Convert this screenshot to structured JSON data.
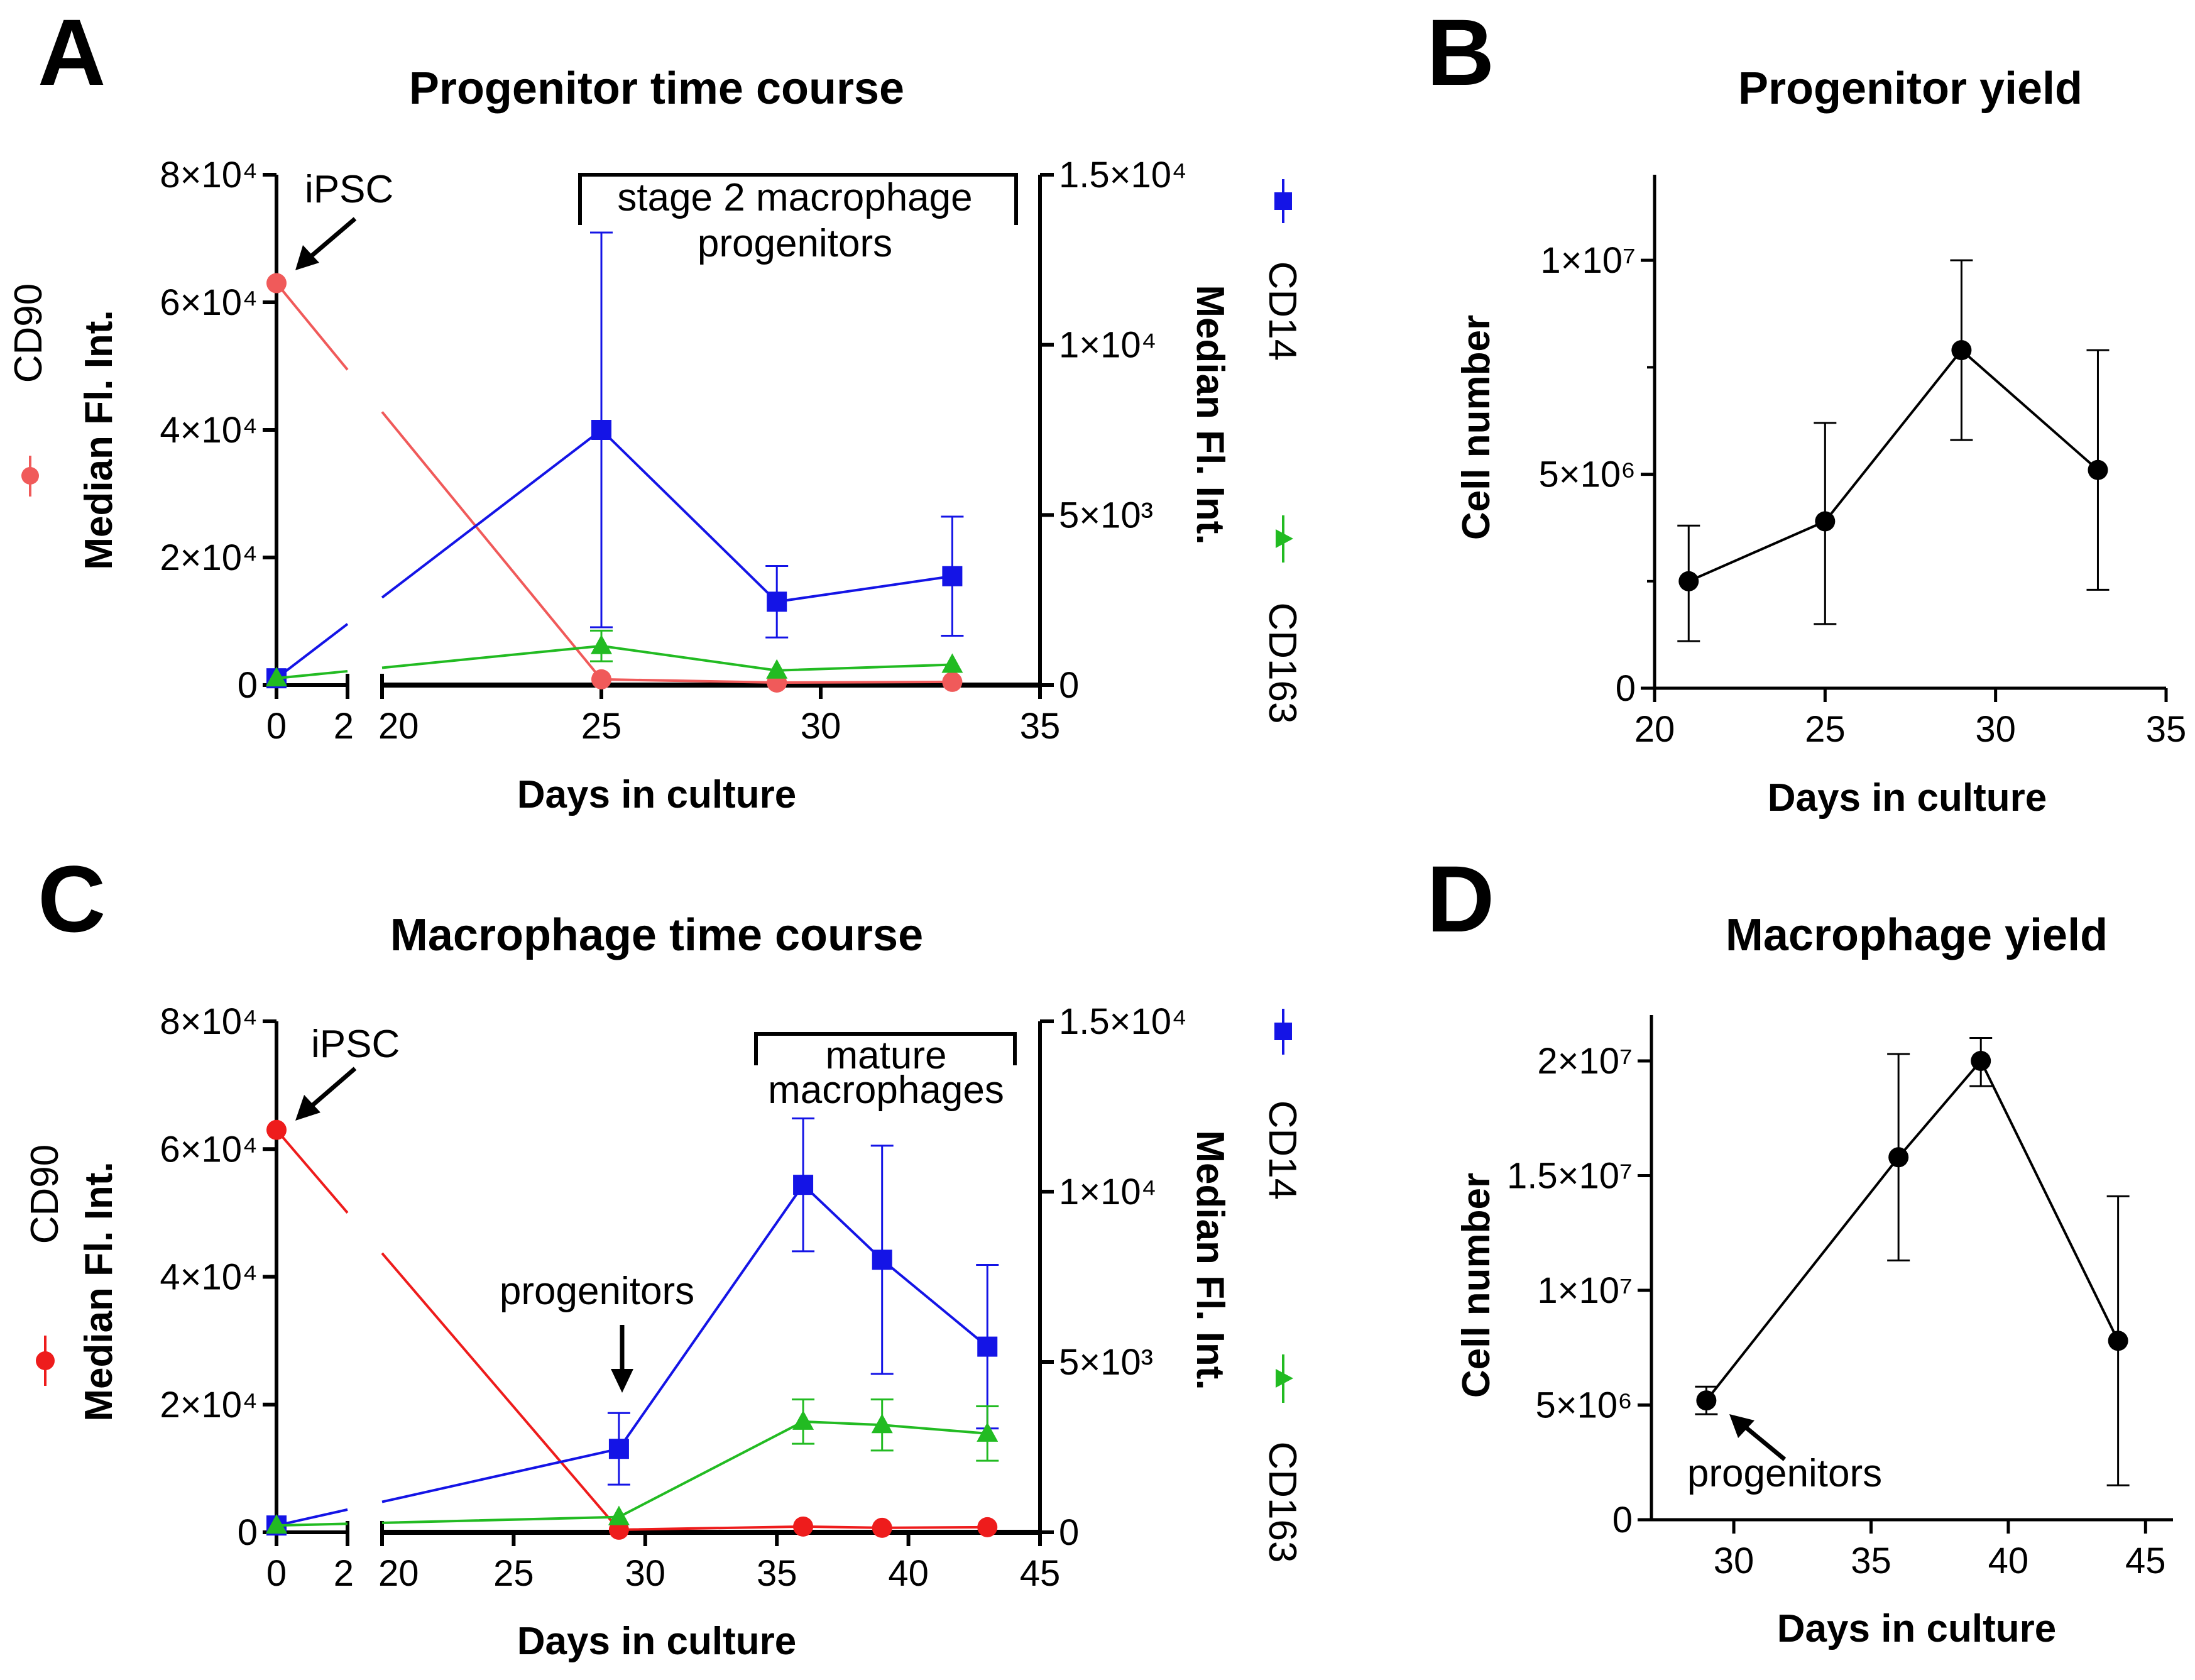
{
  "panels": [
    {
      "letter": "A",
      "title": "Progenitor time course",
      "xlabel": "Days in culture",
      "ylabel_left": "Median Fl. Int.",
      "ylabel_right": "Median Fl. Int.",
      "legend": {
        "cd90": "CD90",
        "cd14": "CD14",
        "cd163": "CD163"
      },
      "annotations": {
        "ipsc": "iPSC",
        "bracket_line1": "stage 2 macrophage",
        "bracket_line2": "progenitors"
      }
    },
    {
      "letter": "B",
      "title": "Progenitor yield",
      "xlabel": "Days in culture",
      "ylabel": "Cell number"
    },
    {
      "letter": "C",
      "title": "Macrophage time course",
      "xlabel": "Days in culture",
      "ylabel_left": "Median Fl. Int.",
      "ylabel_right": "Median Fl. Int.",
      "legend": {
        "cd90": "CD90",
        "cd14": "CD14",
        "cd163": "CD163"
      },
      "annotations": {
        "ipsc": "iPSC",
        "progenitors": "progenitors",
        "bracket_line1": "mature",
        "bracket_line2": "macrophages"
      }
    },
    {
      "letter": "D",
      "title": "Macrophage yield",
      "xlabel": "Days in culture",
      "ylabel": "Cell number",
      "annotations": {
        "progenitors": "progenitors"
      }
    }
  ],
  "colors": {
    "cd90_A": "#f05a5a",
    "cd90_C": "#ee1c1c",
    "cd14": "#1414e6",
    "cd163": "#22bb22",
    "axis": "#000000"
  },
  "chart_data": [
    {
      "type": "line",
      "title": "Progenitor time course",
      "xlabel": "Days in culture",
      "x_axis_break": {
        "segment1": [
          0,
          2
        ],
        "segment2": [
          20,
          35
        ]
      },
      "x_ticks_segment1": [
        0,
        2
      ],
      "x_ticks_segment2": [
        20,
        25,
        30,
        35
      ],
      "x_tick_labels": [
        "0",
        "2",
        "20",
        "25",
        "30",
        "35"
      ],
      "y_left": {
        "label": "Median Fl. Int.",
        "lim": [
          0,
          80000
        ],
        "ticks": [
          0,
          20000,
          40000,
          60000,
          80000
        ],
        "tick_labels": [
          "0",
          "2×10⁴",
          "4×10⁴",
          "6×10⁴",
          "8×10⁴"
        ]
      },
      "y_right": {
        "label": "Median Fl. Int.",
        "lim": [
          0,
          15000
        ],
        "ticks": [
          0,
          5000,
          10000,
          15000
        ],
        "tick_labels": [
          "0",
          "5×10³",
          "1×10⁴",
          "1.5×10⁴"
        ]
      },
      "series": [
        {
          "name": "CD90",
          "axis": "left",
          "marker": "circle",
          "x": [
            0,
            25,
            29,
            33
          ],
          "y": [
            63000,
            900,
            400,
            500
          ],
          "err": [
            0,
            0,
            0,
            0
          ]
        },
        {
          "name": "CD14",
          "axis": "right",
          "marker": "square",
          "x": [
            0,
            25,
            29,
            33
          ],
          "y": [
            200,
            7500,
            2450,
            3200
          ],
          "err": [
            0,
            5800,
            1050,
            1750
          ]
        },
        {
          "name": "CD163",
          "axis": "right",
          "marker": "triangle",
          "x": [
            0,
            25,
            29,
            33
          ],
          "y": [
            200,
            1150,
            430,
            600
          ],
          "err": [
            0,
            450,
            0,
            0
          ]
        }
      ]
    },
    {
      "type": "line",
      "title": "Progenitor yield",
      "xlabel": "Days in culture",
      "ylabel": "Cell number",
      "xlim": [
        20,
        35
      ],
      "x_ticks": [
        20,
        25,
        30,
        35
      ],
      "x_tick_labels": [
        "20",
        "25",
        "30",
        "35"
      ],
      "ylim": [
        0,
        12000000
      ],
      "y_ticks": [
        0,
        5000000,
        10000000
      ],
      "y_tick_labels": [
        "0",
        "5×10⁶",
        "1×10⁷"
      ],
      "series": [
        {
          "name": "Cell number",
          "marker": "circle",
          "x": [
            21,
            25,
            29,
            33
          ],
          "y": [
            2500000,
            3900000,
            7900000,
            5100000
          ],
          "err_low": [
            1100000,
            1500000,
            5800000,
            2300000
          ],
          "err_high": [
            3800000,
            6200000,
            10000000,
            7900000
          ]
        }
      ]
    },
    {
      "type": "line",
      "title": "Macrophage time course",
      "xlabel": "Days in culture",
      "x_axis_break": {
        "segment1": [
          0,
          2
        ],
        "segment2": [
          20,
          45
        ]
      },
      "x_ticks_segment1": [
        0,
        2
      ],
      "x_ticks_segment2": [
        20,
        25,
        30,
        35,
        40,
        45
      ],
      "x_tick_labels": [
        "0",
        "2",
        "20",
        "25",
        "30",
        "35",
        "40",
        "45"
      ],
      "y_left": {
        "label": "Median Fl. Int.",
        "lim": [
          0,
          80000
        ],
        "ticks": [
          0,
          20000,
          40000,
          60000,
          80000
        ],
        "tick_labels": [
          "0",
          "2×10⁴",
          "4×10⁴",
          "6×10⁴",
          "8×10⁴"
        ]
      },
      "y_right": {
        "label": "Median Fl. Int.",
        "lim": [
          0,
          15000
        ],
        "ticks": [
          0,
          5000,
          10000,
          15000
        ],
        "tick_labels": [
          "0",
          "5×10³",
          "1×10⁴",
          "1.5×10⁴"
        ]
      },
      "series": [
        {
          "name": "CD90",
          "axis": "left",
          "marker": "circle",
          "x": [
            0,
            29,
            36,
            39,
            43
          ],
          "y": [
            63000,
            400,
            900,
            700,
            800
          ],
          "err": [
            0,
            0,
            0,
            0,
            0
          ]
        },
        {
          "name": "CD14",
          "axis": "right",
          "marker": "square",
          "x": [
            0,
            29,
            36,
            39,
            43
          ],
          "y": [
            200,
            2450,
            10200,
            8000,
            5450
          ],
          "err": [
            0,
            1050,
            1950,
            3350,
            2400
          ]
        },
        {
          "name": "CD163",
          "axis": "right",
          "marker": "triangle",
          "x": [
            0,
            29,
            36,
            39,
            43
          ],
          "y": [
            200,
            450,
            3250,
            3150,
            2900
          ],
          "err": [
            0,
            0,
            650,
            750,
            800
          ]
        }
      ]
    },
    {
      "type": "line",
      "title": "Macrophage yield",
      "xlabel": "Days in culture",
      "ylabel": "Cell number",
      "xlim": [
        27,
        46
      ],
      "x_ticks": [
        30,
        35,
        40,
        45
      ],
      "x_tick_labels": [
        "30",
        "35",
        "40",
        "45"
      ],
      "ylim": [
        0,
        22000000
      ],
      "y_ticks": [
        0,
        5000000,
        10000000,
        15000000,
        20000000
      ],
      "y_tick_labels": [
        "0",
        "5×10⁶",
        "1×10⁷",
        "1.5×10⁷",
        "2×10⁷"
      ],
      "series": [
        {
          "name": "Cell number",
          "marker": "circle",
          "x": [
            29,
            36,
            39,
            44
          ],
          "y": [
            5200000,
            15800000,
            20000000,
            7800000
          ],
          "err_low": [
            4600000,
            11300000,
            18900000,
            1500000
          ],
          "err_high": [
            5800000,
            20300000,
            21000000,
            14100000
          ]
        }
      ]
    }
  ]
}
